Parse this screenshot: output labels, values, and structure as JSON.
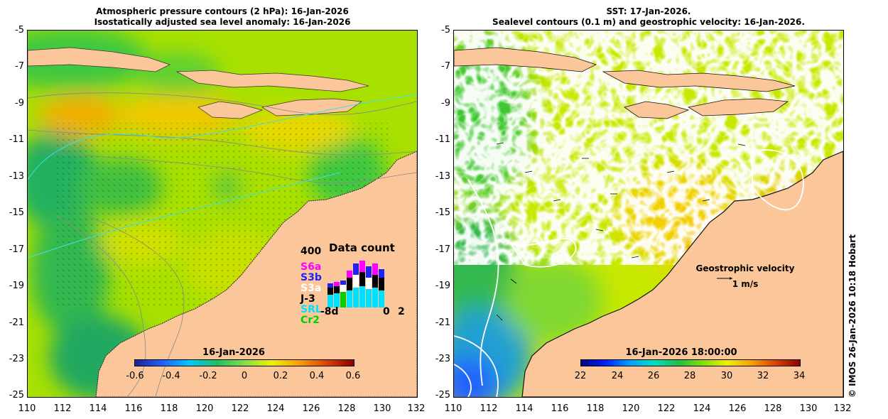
{
  "left_title": {
    "line1": "Atmospheric pressure contours (2 hPa): 16-Jan-2026",
    "line2": "Isostatically adjusted sea level anomaly: 16-Jan-2026"
  },
  "right_title": {
    "line1": "SST: 17-Jan-2026.",
    "line2": "Sealevel contours (0.1 m) and geostrophic velocity: 16-Jan-2026."
  },
  "y_ticks": [
    "-5",
    "-7",
    "-9",
    "-11",
    "-13",
    "-15",
    "-17",
    "-19",
    "-21",
    "-23",
    "-25"
  ],
  "x_ticks": [
    "110",
    "112",
    "114",
    "116",
    "118",
    "120",
    "122",
    "124",
    "126",
    "128",
    "130",
    "132"
  ],
  "left_colorbar": {
    "title": "16-Jan-2026",
    "labels": [
      "-0.6",
      "-0.4",
      "-0.2",
      "0",
      "0.2",
      "0.4",
      "0.6"
    ],
    "range": [
      -0.6,
      0.6
    ]
  },
  "right_colorbar": {
    "title": "16-Jan-2026 18:00:00",
    "labels": [
      "22",
      "24",
      "26",
      "28",
      "30",
      "32",
      "34"
    ],
    "range": [
      22,
      34
    ]
  },
  "data_count": {
    "title": "Data count",
    "ymax_label": "400",
    "sats": [
      {
        "name": "S6a",
        "color": "#ff00ff"
      },
      {
        "name": "S3b",
        "color": "#2020ff"
      },
      {
        "name": "S3a",
        "color": "#ffffff"
      },
      {
        "name": "J-3",
        "color": "#000000"
      },
      {
        "name": "SRL",
        "color": "#00e0ff"
      },
      {
        "name": "Cr2",
        "color": "#00d000"
      }
    ],
    "x_labels": [
      "-8d",
      "0",
      "2"
    ]
  },
  "geostrophic": {
    "label": "Geostrophic velocity",
    "scale": "1 m/s"
  },
  "credit": "© IMOS 26-Jan-2026 10:18 Hobart"
}
